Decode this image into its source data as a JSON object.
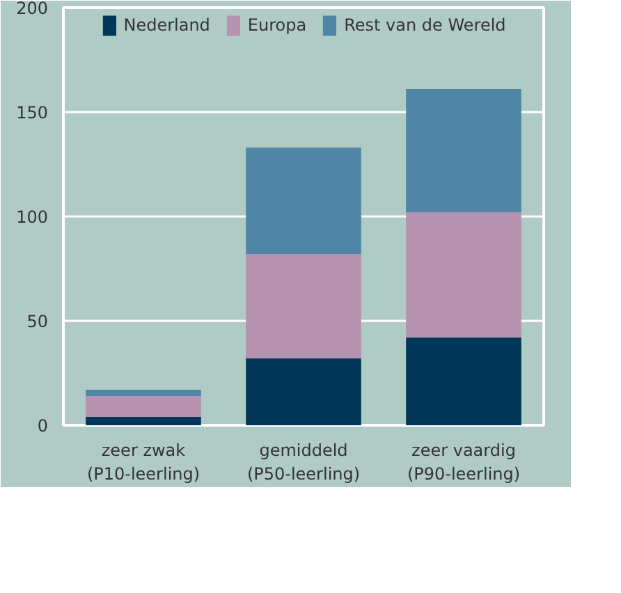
{
  "chart_data": {
    "type": "bar",
    "stacked": true,
    "categories": [
      "zeer zwak\n(P10-leerling)",
      "gemiddeld\n(P50-leerling)",
      "zeer vaardig\n(P90-leerling)"
    ],
    "series": [
      {
        "name": "Nederland",
        "color": "#003658",
        "values": [
          4,
          32,
          42
        ]
      },
      {
        "name": "Europa",
        "color": "#b492b0",
        "values": [
          10,
          50,
          60
        ]
      },
      {
        "name": "Rest van de Wereld",
        "color": "#4f86a6",
        "values": [
          3,
          51,
          59
        ]
      }
    ],
    "ylim": [
      0,
      200
    ],
    "yticks": [
      0,
      50,
      100,
      150,
      200
    ],
    "grid": "y",
    "legend": "top"
  }
}
